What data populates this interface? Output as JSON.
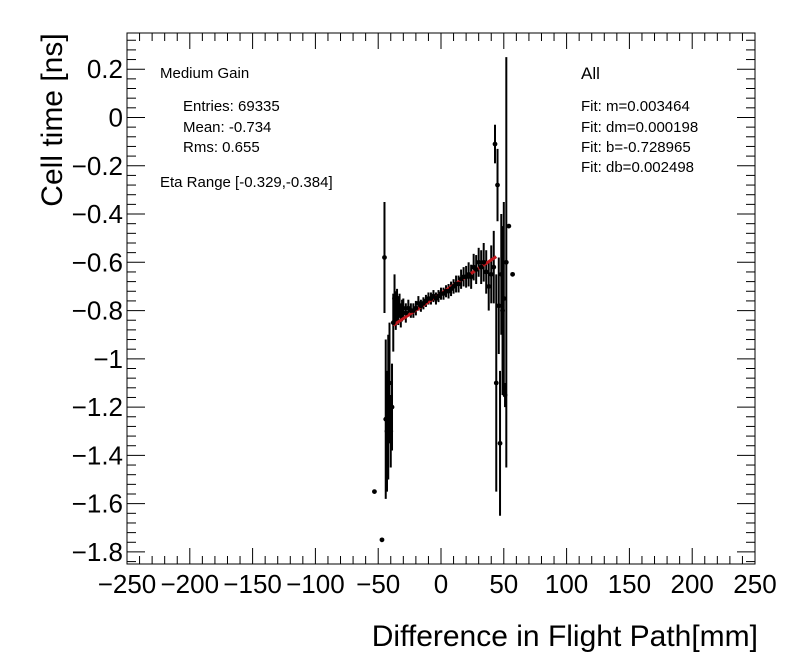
{
  "chart_data": {
    "type": "scatter",
    "xlabel": "Difference in Flight Path[mm]",
    "ylabel": "Cell time [ns]",
    "xlim": [
      -250,
      250
    ],
    "ylim": [
      -1.85,
      0.35
    ],
    "x_ticks": [
      -250,
      -200,
      -150,
      -100,
      -50,
      0,
      50,
      100,
      150,
      200,
      250
    ],
    "x_tick_labels": [
      "−250",
      "−200",
      "−150",
      "−100",
      "−50",
      "0",
      "50",
      "100",
      "150",
      "200",
      "250"
    ],
    "y_ticks": [
      0.2,
      0,
      -0.2,
      -0.4,
      -0.6,
      -0.8,
      -1,
      -1.2,
      -1.4,
      -1.6,
      -1.8
    ],
    "y_tick_labels": [
      "0.2",
      "0",
      "−0.2",
      "−0.4",
      "−0.6",
      "−0.8",
      "−1",
      "−1.2",
      "−1.4",
      "−1.6",
      "−1.8"
    ],
    "annotations": {
      "gain": "Medium Gain",
      "entries": "Entries: 69335",
      "mean": "Mean: -0.734",
      "rms": "Rms: 0.655",
      "eta_range": "Eta Range [-0.329,-0.384]",
      "partition": "All",
      "fit_m": "Fit: m=0.003464",
      "fit_dm": "Fit: dm=0.000198",
      "fit_b": "Fit: b=-0.728965",
      "fit_db": "Fit: db=0.002498"
    },
    "fit_line": {
      "slope": 0.003464,
      "intercept": -0.728965,
      "x_range": [
        -38,
        44
      ],
      "color": "#c0161b"
    },
    "series": [
      {
        "name": "profile",
        "color": "#000000",
        "points": [
          {
            "x": -53,
            "y": -1.55,
            "err": 0
          },
          {
            "x": -47,
            "y": -1.75,
            "err": 0
          },
          {
            "x": -45,
            "y": -0.58,
            "err": 0.23
          },
          {
            "x": -44,
            "y": -1.25,
            "err": 0.33
          },
          {
            "x": -43,
            "y": -1.3,
            "err": 0.25
          },
          {
            "x": -42,
            "y": -1.2,
            "err": 0.3
          },
          {
            "x": -41,
            "y": -1.1,
            "err": 0.25
          },
          {
            "x": -40,
            "y": -1.3,
            "err": 0.15
          },
          {
            "x": -39,
            "y": -1.2,
            "err": 0.18
          },
          {
            "x": -38,
            "y": -0.85,
            "err": 0.12
          },
          {
            "x": -37,
            "y": -0.75,
            "err": 0.1
          },
          {
            "x": -36,
            "y": -0.8,
            "err": 0.08
          },
          {
            "x": -35,
            "y": -0.78,
            "err": 0.07
          },
          {
            "x": -34,
            "y": -0.8,
            "err": 0.06
          },
          {
            "x": -33,
            "y": -0.78,
            "err": 0.05
          },
          {
            "x": -32,
            "y": -0.82,
            "err": 0.05
          },
          {
            "x": -31,
            "y": -0.8,
            "err": 0.045
          },
          {
            "x": -30,
            "y": -0.79,
            "err": 0.04
          },
          {
            "x": -28,
            "y": -0.81,
            "err": 0.04
          },
          {
            "x": -26,
            "y": -0.79,
            "err": 0.035
          },
          {
            "x": -24,
            "y": -0.8,
            "err": 0.03
          },
          {
            "x": -22,
            "y": -0.8,
            "err": 0.03
          },
          {
            "x": -20,
            "y": -0.79,
            "err": 0.03
          },
          {
            "x": -18,
            "y": -0.77,
            "err": 0.03
          },
          {
            "x": -16,
            "y": -0.78,
            "err": 0.025
          },
          {
            "x": -14,
            "y": -0.77,
            "err": 0.025
          },
          {
            "x": -12,
            "y": -0.76,
            "err": 0.025
          },
          {
            "x": -10,
            "y": -0.75,
            "err": 0.025
          },
          {
            "x": -8,
            "y": -0.75,
            "err": 0.025
          },
          {
            "x": -6,
            "y": -0.74,
            "err": 0.025
          },
          {
            "x": -4,
            "y": -0.75,
            "err": 0.025
          },
          {
            "x": -2,
            "y": -0.74,
            "err": 0.025
          },
          {
            "x": 0,
            "y": -0.73,
            "err": 0.025
          },
          {
            "x": 2,
            "y": -0.73,
            "err": 0.025
          },
          {
            "x": 4,
            "y": -0.72,
            "err": 0.025
          },
          {
            "x": 6,
            "y": -0.72,
            "err": 0.03
          },
          {
            "x": 8,
            "y": -0.71,
            "err": 0.03
          },
          {
            "x": 10,
            "y": -0.7,
            "err": 0.03
          },
          {
            "x": 12,
            "y": -0.69,
            "err": 0.035
          },
          {
            "x": 14,
            "y": -0.69,
            "err": 0.035
          },
          {
            "x": 16,
            "y": -0.67,
            "err": 0.04
          },
          {
            "x": 18,
            "y": -0.66,
            "err": 0.04
          },
          {
            "x": 20,
            "y": -0.66,
            "err": 0.045
          },
          {
            "x": 22,
            "y": -0.65,
            "err": 0.05
          },
          {
            "x": 24,
            "y": -0.66,
            "err": 0.05
          },
          {
            "x": 26,
            "y": -0.62,
            "err": 0.055
          },
          {
            "x": 28,
            "y": -0.63,
            "err": 0.06
          },
          {
            "x": 30,
            "y": -0.6,
            "err": 0.06
          },
          {
            "x": 32,
            "y": -0.62,
            "err": 0.07
          },
          {
            "x": 34,
            "y": -0.6,
            "err": 0.08
          },
          {
            "x": 36,
            "y": -0.64,
            "err": 0.09
          },
          {
            "x": 38,
            "y": -0.7,
            "err": 0.1
          },
          {
            "x": 40,
            "y": -0.65,
            "err": 0.12
          },
          {
            "x": 42,
            "y": -0.62,
            "err": 0.15
          },
          {
            "x": 43,
            "y": -0.11,
            "err": 0.08
          },
          {
            "x": 44,
            "y": -1.1,
            "err": 0.45
          },
          {
            "x": 45,
            "y": -0.28,
            "err": 0.15
          },
          {
            "x": 46,
            "y": -0.78,
            "err": 0.2
          },
          {
            "x": 47,
            "y": -1.35,
            "err": 0.3
          },
          {
            "x": 48,
            "y": -0.65,
            "err": 0.25
          },
          {
            "x": 49,
            "y": -0.8,
            "err": 0.35
          },
          {
            "x": 50,
            "y": -0.75,
            "err": 0.4
          },
          {
            "x": 51,
            "y": -1.15,
            "err": 0.05
          },
          {
            "x": 52,
            "y": -0.6,
            "err": 0.85
          },
          {
            "x": 54,
            "y": -0.45,
            "err": 0
          },
          {
            "x": 57,
            "y": -0.65,
            "err": 0
          }
        ]
      }
    ]
  }
}
